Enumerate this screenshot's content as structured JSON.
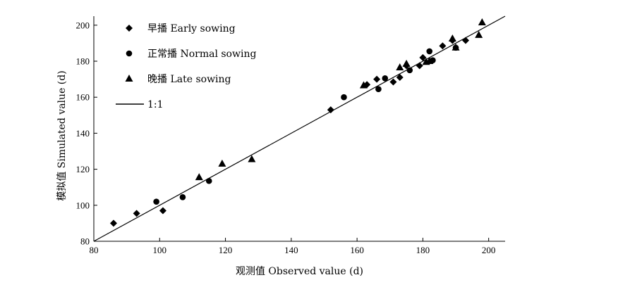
{
  "chart_data": {
    "type": "scatter",
    "xlabel": "观测值 Observed value (d)",
    "ylabel": "模拟值 Simulated value (d)",
    "xlim": [
      80,
      205
    ],
    "ylim": [
      80,
      205
    ],
    "xticks": [
      80,
      100,
      120,
      140,
      160,
      180,
      200
    ],
    "yticks": [
      80,
      100,
      120,
      140,
      160,
      180,
      200
    ],
    "grid": false,
    "legend_position": "top-left",
    "series": [
      {
        "name": "早播 Early sowing",
        "marker": "diamond",
        "points": [
          [
            86,
            90
          ],
          [
            93,
            95.5
          ],
          [
            101,
            97
          ],
          [
            152,
            153
          ],
          [
            163,
            167
          ],
          [
            166,
            170
          ],
          [
            171,
            168.5
          ],
          [
            173,
            171
          ],
          [
            175,
            177.5
          ],
          [
            179,
            177.5
          ],
          [
            180,
            182
          ],
          [
            186,
            188.5
          ],
          [
            189,
            191.5
          ],
          [
            193,
            191.5
          ]
        ]
      },
      {
        "name": "正常播 Normal sowing",
        "marker": "circle",
        "points": [
          [
            99,
            102
          ],
          [
            107,
            104.5
          ],
          [
            115,
            113.5
          ],
          [
            156,
            160
          ],
          [
            166.5,
            164.5
          ],
          [
            168.5,
            170.5
          ],
          [
            176,
            175
          ],
          [
            182,
            185.5
          ],
          [
            183,
            180.5
          ],
          [
            190,
            187.5
          ]
        ]
      },
      {
        "name": "晚播 Late sowing",
        "marker": "triangle",
        "points": [
          [
            112,
            115.5
          ],
          [
            119,
            123
          ],
          [
            128,
            125.5
          ],
          [
            162,
            166.5
          ],
          [
            173,
            176.5
          ],
          [
            175,
            178.5
          ],
          [
            181,
            179.5
          ],
          [
            182,
            180
          ],
          [
            189,
            192.5
          ],
          [
            190,
            187.5
          ],
          [
            197,
            194.5
          ],
          [
            198,
            201.5
          ]
        ]
      },
      {
        "name": "1:1",
        "marker": "line",
        "points": [
          [
            80,
            80
          ],
          [
            205,
            205
          ]
        ]
      }
    ]
  }
}
